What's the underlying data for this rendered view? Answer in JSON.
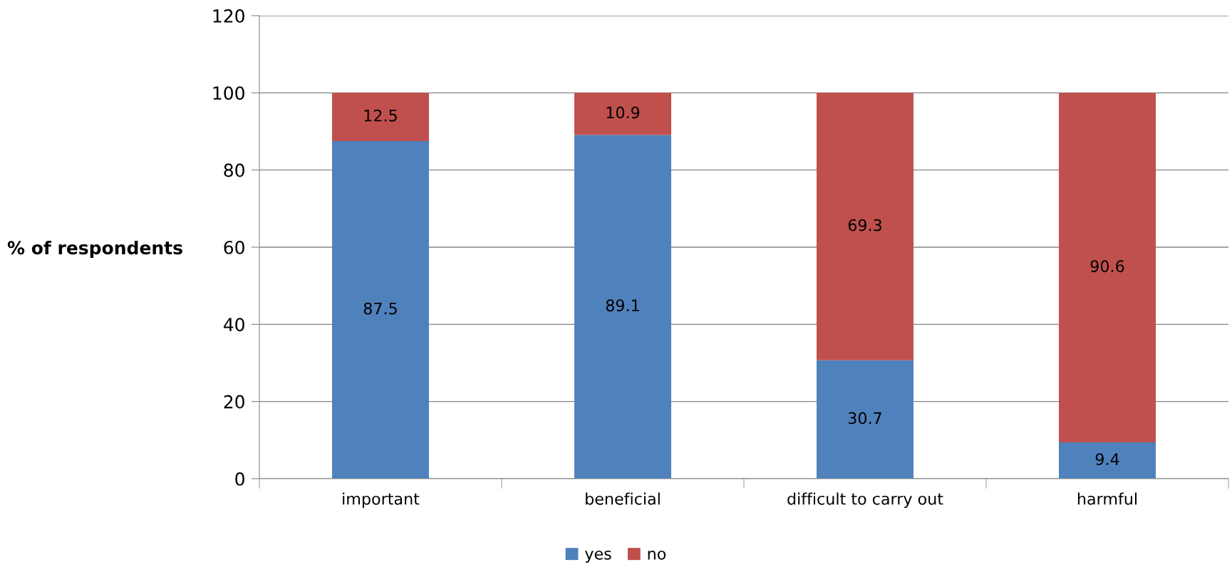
{
  "chart_data": {
    "type": "bar",
    "stacked": true,
    "ylabel": "% of respondents",
    "categories": [
      "important",
      "beneficial",
      "difficult to carry out",
      "harmful"
    ],
    "series": [
      {
        "name": "yes",
        "color": "#4f81bd",
        "values": [
          87.5,
          89.1,
          30.7,
          9.4
        ]
      },
      {
        "name": "no",
        "color": "#c0504d",
        "values": [
          12.5,
          10.9,
          69.3,
          90.6
        ]
      }
    ],
    "ylim": [
      0,
      120
    ],
    "yticks": [
      0,
      20,
      40,
      60,
      80,
      100,
      120
    ],
    "grid": "y",
    "legend": "bottom",
    "data_labels": true
  }
}
